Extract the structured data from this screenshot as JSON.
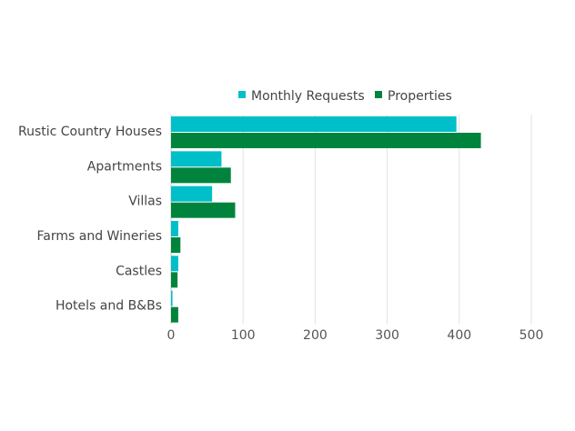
{
  "chart_data": {
    "type": "bar",
    "orientation": "horizontal",
    "categories": [
      "Rustic Country Houses",
      "Apartments",
      "Villas",
      "Farms and Wineries",
      "Castles",
      "Hotels and B&Bs"
    ],
    "series": [
      {
        "name": "Monthly Requests",
        "color": "#00BFC8",
        "values": [
          396,
          70,
          57,
          10,
          10,
          2
        ]
      },
      {
        "name": "Properties",
        "color": "#00843D",
        "values": [
          430,
          83,
          89,
          13,
          9,
          10
        ]
      }
    ],
    "xlim": [
      0,
      500
    ],
    "xticks": [
      "0",
      "100",
      "200",
      "300",
      "400",
      "500"
    ],
    "title": "",
    "xlabel": "",
    "ylabel": "",
    "grid": true,
    "legend": "top"
  }
}
